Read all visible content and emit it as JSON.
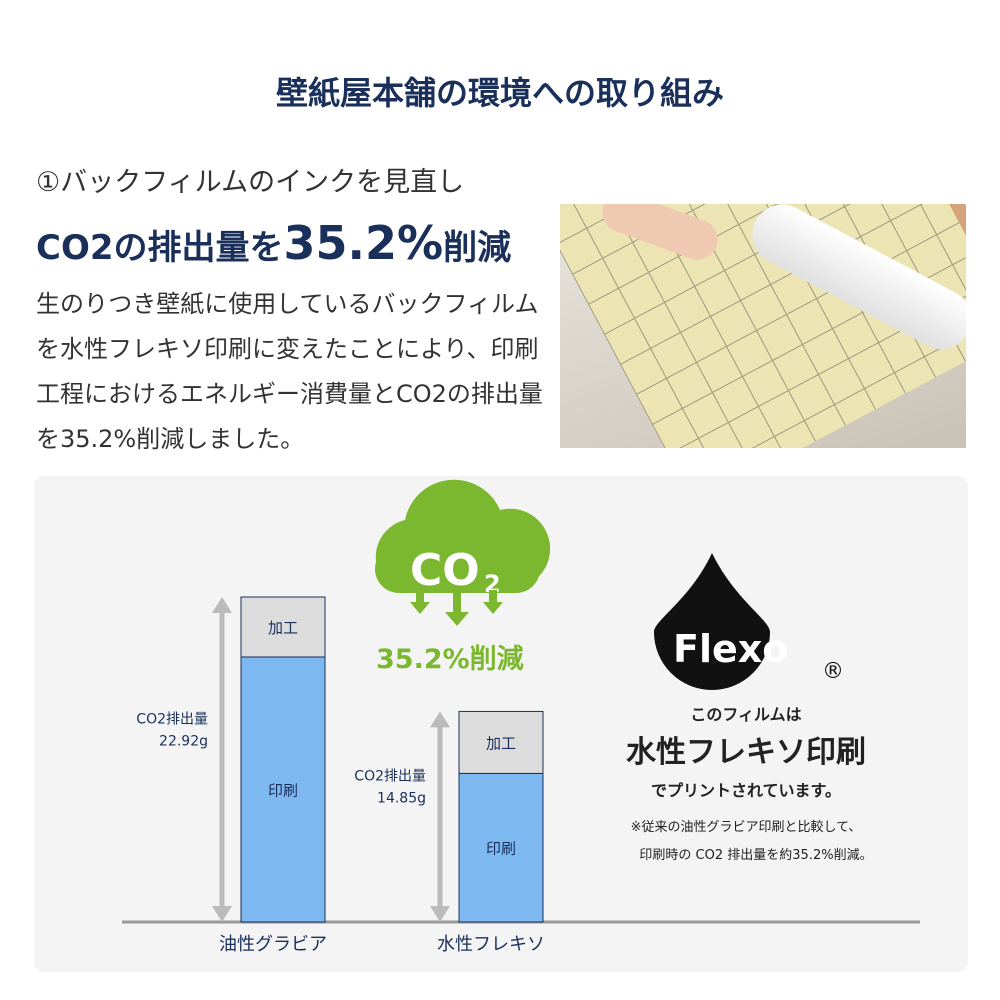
{
  "header": {
    "title": "壁紙屋本舗の環境への取り組み"
  },
  "section": {
    "subtitle": "①バックフィルムのインクを見直し",
    "headline_prefix": "CO2の排出量を",
    "headline_value": "35.2%",
    "headline_suffix": "削減",
    "body": "生のりつき壁紙に使用しているバックフィルムを水性フレキソ印刷に変えたことにより、印刷工程におけるエネルギー消費量とCO2の排出量を35.2%削減しました。"
  },
  "co2_badge": {
    "label": "CO",
    "sub": "2",
    "reduction": "35.2%削減",
    "color": "#7cb82f"
  },
  "flexo": {
    "logo": "Flexo",
    "registered": "®",
    "line1": "このフィルムは",
    "line2": "水性フレキソ印刷",
    "line3": "でプリントされています。",
    "note1": "※従来の油性グラビア印刷と比較して、",
    "note2": "印刷時の CO2 排出量を約35.2%削減。"
  },
  "chart_data": {
    "type": "bar",
    "stacked": true,
    "categories": [
      "油性グラビア",
      "水性フレキソ"
    ],
    "series": [
      {
        "name": "印刷",
        "values": [
          18.69,
          10.48
        ],
        "color": "#7db8f0"
      },
      {
        "name": "加工",
        "values": [
          4.23,
          4.37
        ],
        "color": "#dcdcdc"
      }
    ],
    "totals": [
      22.92,
      14.85
    ],
    "total_labels": [
      [
        "CO2排出量",
        "22.92g"
      ],
      [
        "CO2排出量",
        "14.85g"
      ]
    ],
    "ylim": [
      0,
      22.92
    ],
    "grid": false
  }
}
